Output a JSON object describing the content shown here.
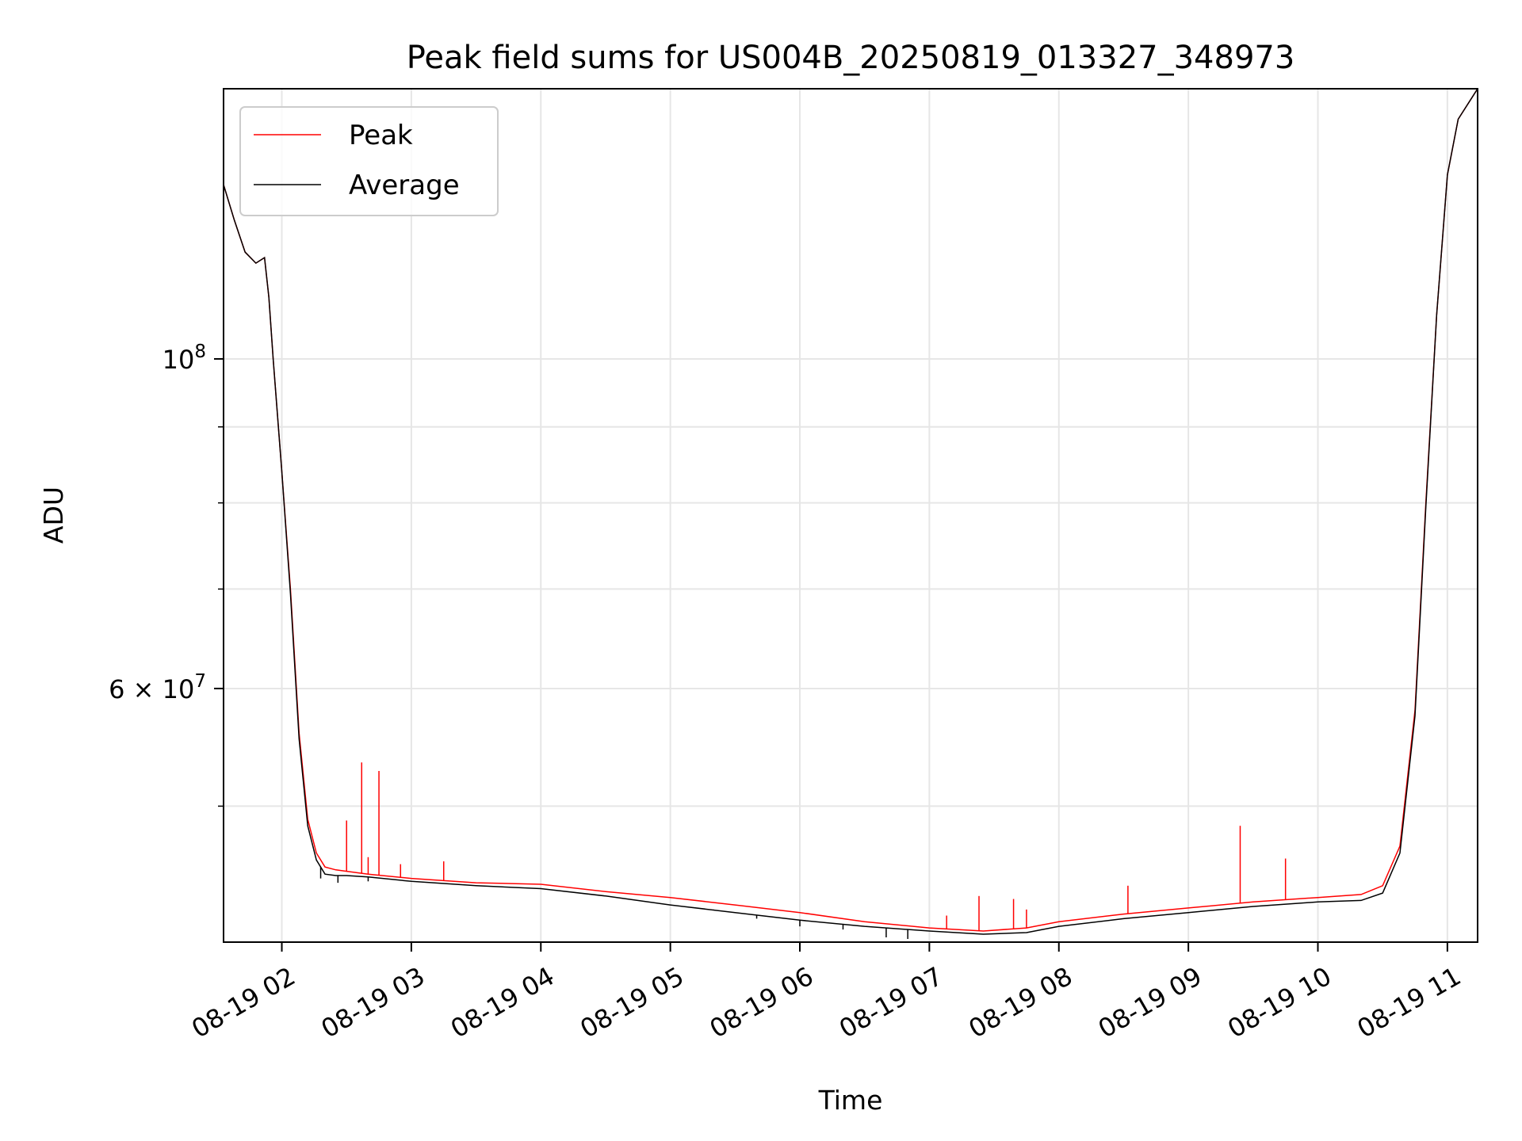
{
  "chart_data": {
    "type": "line",
    "title": "Peak field sums for US004B_20250819_013327_348973",
    "xlabel": "Time",
    "ylabel": "ADU",
    "y_scale": "log",
    "grid": true,
    "legend_position": "upper-left",
    "xlim": [
      "2025-08-19T01:33",
      "2025-08-19T11:14"
    ],
    "ylim": [
      40500000,
      152000000
    ],
    "x_ticks": [
      "08-19 02",
      "08-19 03",
      "08-19 04",
      "08-19 05",
      "08-19 06",
      "08-19 07",
      "08-19 08",
      "08-19 09",
      "08-19 10",
      "08-19 11"
    ],
    "y_ticks": [
      {
        "value": 100000000,
        "label_base": "10",
        "label_exp": "8"
      },
      {
        "value": 60000000,
        "label_base": "6 × 10",
        "label_exp": "7"
      }
    ],
    "y_minor_ticks": [
      50000000,
      70000000,
      80000000,
      90000000
    ],
    "series": [
      {
        "name": "Peak",
        "color": "#ff0000",
        "x": [
          "2025-08-19T01:33",
          "2025-08-19T01:38",
          "2025-08-19T01:43",
          "2025-08-19T01:48",
          "2025-08-19T01:52",
          "2025-08-19T01:54",
          "2025-08-19T01:56",
          "2025-08-19T02:00",
          "2025-08-19T02:04",
          "2025-08-19T02:08",
          "2025-08-19T02:12",
          "2025-08-19T02:16",
          "2025-08-19T02:20",
          "2025-08-19T02:25",
          "2025-08-19T02:30",
          "2025-08-19T02:40",
          "2025-08-19T03:00",
          "2025-08-19T03:30",
          "2025-08-19T04:00",
          "2025-08-19T04:30",
          "2025-08-19T05:00",
          "2025-08-19T05:30",
          "2025-08-19T06:00",
          "2025-08-19T06:30",
          "2025-08-19T07:00",
          "2025-08-19T07:25",
          "2025-08-19T07:45",
          "2025-08-19T08:00",
          "2025-08-19T08:30",
          "2025-08-19T09:00",
          "2025-08-19T09:30",
          "2025-08-19T10:00",
          "2025-08-19T10:20",
          "2025-08-19T10:30",
          "2025-08-19T10:38",
          "2025-08-19T10:45",
          "2025-08-19T10:50",
          "2025-08-19T10:55",
          "2025-08-19T11:00",
          "2025-08-19T11:05",
          "2025-08-19T11:14"
        ],
        "y": [
          131000000,
          124000000,
          118000000,
          116000000,
          117000000,
          110000000,
          100000000,
          84000000,
          70000000,
          56000000,
          49000000,
          46500000,
          45500000,
          45300000,
          45200000,
          45000000,
          44700000,
          44400000,
          44300000,
          43800000,
          43400000,
          42900000,
          42400000,
          41800000,
          41400000,
          41200000,
          41400000,
          41800000,
          42300000,
          42700000,
          43100000,
          43400000,
          43600000,
          44200000,
          47000000,
          58000000,
          80000000,
          107000000,
          133000000,
          145000000,
          152000000
        ],
        "spikes": [
          {
            "x": "2025-08-19T02:30",
            "y": 48900000
          },
          {
            "x": "2025-08-19T02:37",
            "y": 53500000
          },
          {
            "x": "2025-08-19T02:40",
            "y": 46200000
          },
          {
            "x": "2025-08-19T02:45",
            "y": 52800000
          },
          {
            "x": "2025-08-19T02:55",
            "y": 45700000
          },
          {
            "x": "2025-08-19T03:15",
            "y": 45900000
          },
          {
            "x": "2025-08-19T07:08",
            "y": 42200000
          },
          {
            "x": "2025-08-19T07:23",
            "y": 43500000
          },
          {
            "x": "2025-08-19T07:39",
            "y": 43300000
          },
          {
            "x": "2025-08-19T07:45",
            "y": 42600000
          },
          {
            "x": "2025-08-19T08:32",
            "y": 44200000
          },
          {
            "x": "2025-08-19T09:24",
            "y": 48500000
          },
          {
            "x": "2025-08-19T09:45",
            "y": 46100000
          }
        ]
      },
      {
        "name": "Average",
        "color": "#000000",
        "x": [
          "2025-08-19T01:33",
          "2025-08-19T01:38",
          "2025-08-19T01:43",
          "2025-08-19T01:48",
          "2025-08-19T01:52",
          "2025-08-19T01:54",
          "2025-08-19T01:56",
          "2025-08-19T02:00",
          "2025-08-19T02:04",
          "2025-08-19T02:08",
          "2025-08-19T02:12",
          "2025-08-19T02:16",
          "2025-08-19T02:20",
          "2025-08-19T02:25",
          "2025-08-19T02:30",
          "2025-08-19T02:40",
          "2025-08-19T03:00",
          "2025-08-19T03:30",
          "2025-08-19T04:00",
          "2025-08-19T04:30",
          "2025-08-19T05:00",
          "2025-08-19T05:30",
          "2025-08-19T06:00",
          "2025-08-19T06:30",
          "2025-08-19T07:00",
          "2025-08-19T07:25",
          "2025-08-19T07:45",
          "2025-08-19T08:00",
          "2025-08-19T08:30",
          "2025-08-19T09:00",
          "2025-08-19T09:30",
          "2025-08-19T10:00",
          "2025-08-19T10:20",
          "2025-08-19T10:30",
          "2025-08-19T10:38",
          "2025-08-19T10:45",
          "2025-08-19T10:50",
          "2025-08-19T10:55",
          "2025-08-19T11:00",
          "2025-08-19T11:05",
          "2025-08-19T11:14"
        ],
        "y": [
          131000000,
          124000000,
          118000000,
          116000000,
          117000000,
          110000000,
          100000000,
          84000000,
          69500000,
          55500000,
          48500000,
          46000000,
          45000000,
          44900000,
          44900000,
          44800000,
          44500000,
          44200000,
          44000000,
          43500000,
          42900000,
          42400000,
          41900000,
          41500000,
          41200000,
          41000000,
          41100000,
          41500000,
          42000000,
          42400000,
          42800000,
          43100000,
          43200000,
          43700000,
          46500000,
          57500000,
          79500000,
          107000000,
          133000000,
          145000000,
          152000000
        ],
        "dips": [
          {
            "x": "2025-08-19T02:18",
            "y": 44700000
          },
          {
            "x": "2025-08-19T02:26",
            "y": 44400000
          },
          {
            "x": "2025-08-19T02:40",
            "y": 44500000
          },
          {
            "x": "2025-08-19T05:20",
            "y": 42600000
          },
          {
            "x": "2025-08-19T05:40",
            "y": 42000000
          },
          {
            "x": "2025-08-19T06:00",
            "y": 41500000
          },
          {
            "x": "2025-08-19T06:20",
            "y": 41300000
          },
          {
            "x": "2025-08-19T06:40",
            "y": 40800000
          },
          {
            "x": "2025-08-19T06:50",
            "y": 40700000
          }
        ]
      }
    ]
  }
}
